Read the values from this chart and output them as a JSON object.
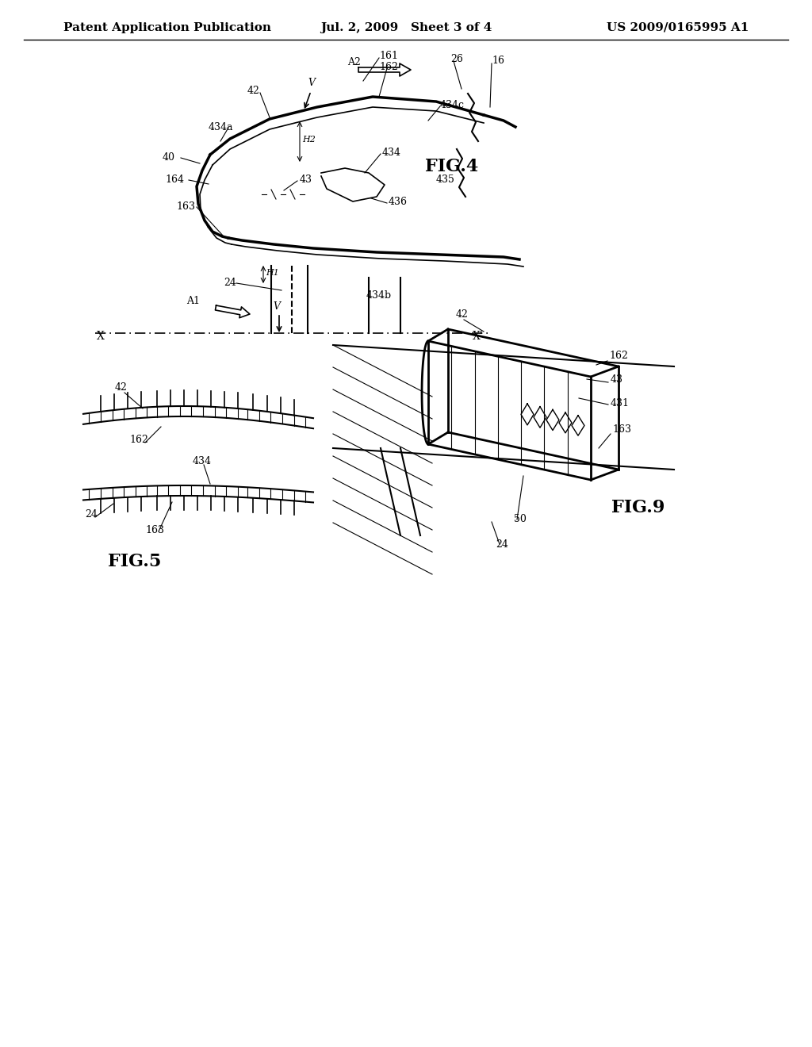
{
  "title_left": "Patent Application Publication",
  "title_center": "Jul. 2, 2009   Sheet 3 of 4",
  "title_right": "US 2009/0165995 A1",
  "fig4_label": "FIG.4",
  "fig5_label": "FIG.5",
  "fig9_label": "FIG.9",
  "background_color": "#ffffff",
  "line_color": "#000000",
  "header_fontsize": 11,
  "fig_label_fontsize": 16,
  "annot_fontsize": 10
}
